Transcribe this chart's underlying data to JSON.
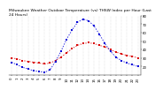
{
  "title": "Milwaukee Weather Outdoor Temperature (vs) THSW Index per Hour (Last 24 Hours)",
  "hours": [
    0,
    1,
    2,
    3,
    4,
    5,
    6,
    7,
    8,
    9,
    10,
    11,
    12,
    13,
    14,
    15,
    16,
    17,
    18,
    19,
    20,
    21,
    22,
    23
  ],
  "temp": [
    30,
    29,
    27,
    26,
    25,
    24,
    23,
    24,
    27,
    31,
    36,
    41,
    45,
    47,
    48,
    47,
    45,
    43,
    40,
    37,
    35,
    33,
    32,
    30
  ],
  "thsw": [
    25,
    22,
    19,
    17,
    15,
    14,
    13,
    16,
    26,
    38,
    52,
    63,
    72,
    76,
    74,
    68,
    58,
    47,
    38,
    31,
    27,
    24,
    22,
    20
  ],
  "temp_color": "#dd0000",
  "thsw_color": "#0000dd",
  "grid_color": "#999999",
  "bg_color": "#ffffff",
  "ylim": [
    10,
    80
  ],
  "ytick_values": [
    20,
    30,
    40,
    50,
    60,
    70,
    80
  ],
  "ytick_labels": [
    "20",
    "30",
    "40",
    "50",
    "60",
    "70",
    "80"
  ],
  "title_fontsize": 3.2,
  "tick_fontsize": 2.8,
  "linewidth": 0.7,
  "markersize": 1.5
}
